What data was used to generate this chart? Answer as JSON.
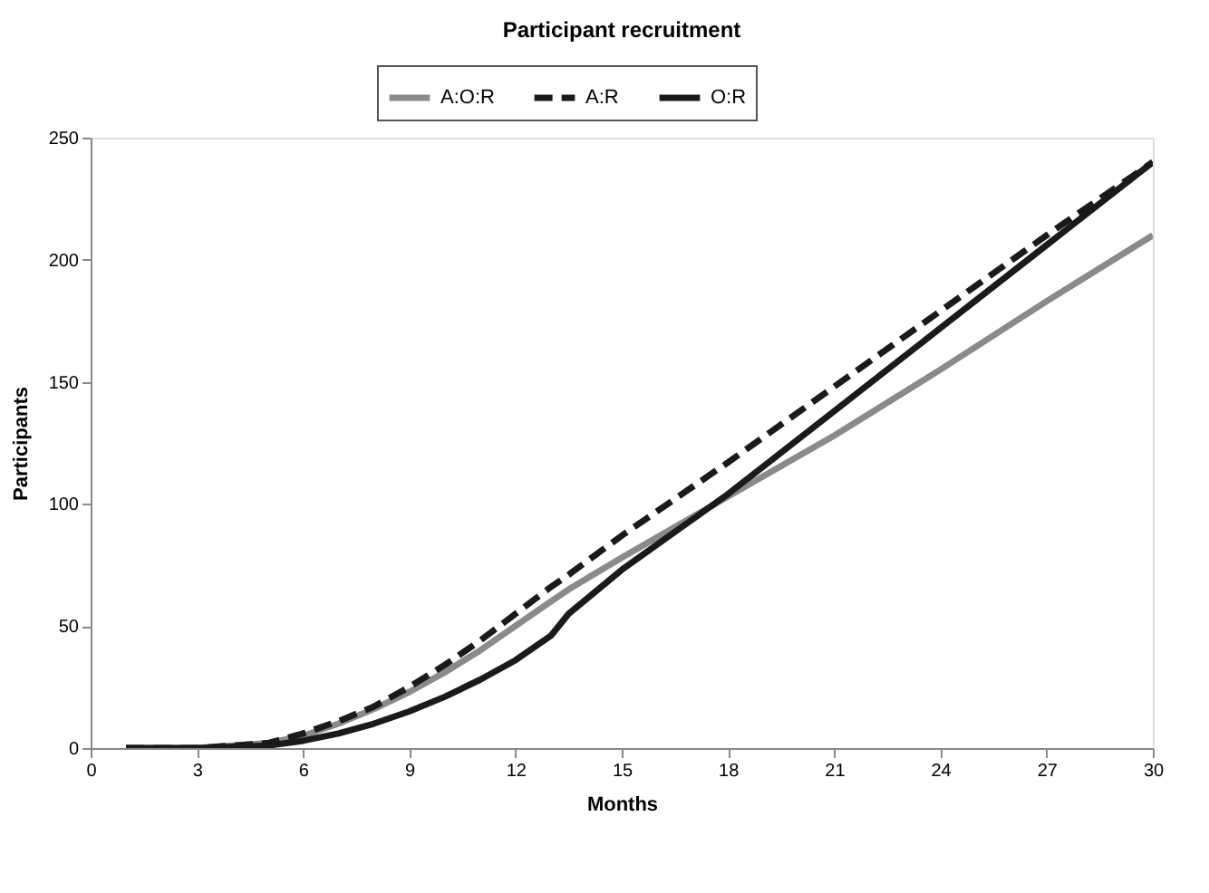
{
  "chart_data": {
    "type": "line",
    "title": "Participant recruitment",
    "xlabel": "Months",
    "ylabel": "Participants",
    "x": [
      1,
      3,
      5,
      6,
      7,
      8,
      9,
      10,
      11,
      12,
      13,
      13.5,
      15,
      18,
      21,
      24,
      27,
      30
    ],
    "series": [
      {
        "name": "A:O:R",
        "color": "#8a8a8a",
        "line_style": "solid",
        "values": [
          0,
          0,
          2,
          5,
          10,
          16,
          23,
          31,
          40,
          50,
          60,
          65,
          78,
          103,
          128,
          155,
          183,
          210
        ]
      },
      {
        "name": "A:R",
        "color": "#1a1a1a",
        "line_style": "dashed",
        "values": [
          0,
          0,
          2,
          6,
          11,
          17,
          25,
          34,
          44,
          55,
          66,
          71,
          87,
          117,
          148,
          179,
          210,
          240
        ]
      },
      {
        "name": "O:R",
        "color": "#1a1a1a",
        "line_style": "solid",
        "values": [
          0,
          0,
          1,
          3,
          6,
          10,
          15,
          21,
          28,
          36,
          46,
          55,
          73,
          104,
          138,
          172,
          206,
          240
        ]
      }
    ],
    "xlim": [
      0,
      30
    ],
    "xticks": [
      0,
      3,
      6,
      9,
      12,
      15,
      18,
      21,
      24,
      27,
      30
    ],
    "ylim": [
      0,
      250
    ],
    "yticks": [
      0,
      50,
      100,
      150,
      200,
      250
    ],
    "grid": false,
    "legend": "top",
    "marker": "none"
  }
}
